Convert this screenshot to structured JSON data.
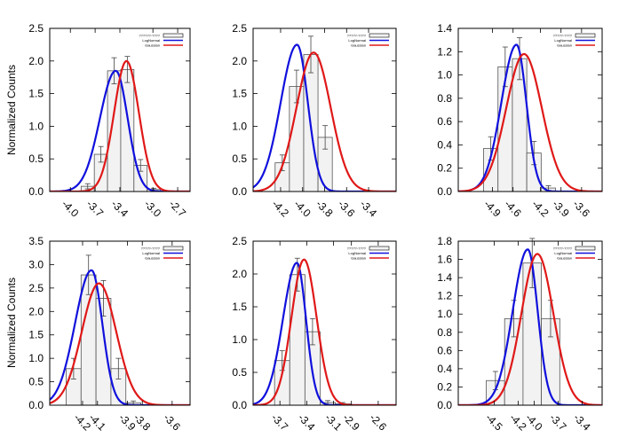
{
  "figure": {
    "ylabel_top": "Normalized Counts",
    "ylabel_bottom": "Normalized Counts"
  },
  "colors": {
    "bar_fill": "#f2f2f2",
    "bar_edge": "#555555",
    "lognormal": "#1010dd",
    "gaussian": "#e01818"
  },
  "chart_data": [
    {
      "type": "bar",
      "title": "",
      "xlabel": "",
      "ylabel": "Normalized Counts",
      "legend": {
        "label_hist": "??????-????",
        "label_lognormal": "LogNormal",
        "label_gaussian": "Gaussian",
        "position": "top-right"
      },
      "xlim": [
        -4.25,
        -2.55
      ],
      "ylim": [
        0,
        2.5
      ],
      "yticks": [
        0.0,
        0.5,
        1.0,
        1.5,
        2.0,
        2.5
      ],
      "ytick_labels": [
        "0.0",
        "0.5",
        "1.0",
        "1.5",
        "2.0",
        "2.5"
      ],
      "xticks": [
        -4.0,
        -3.7,
        -3.4,
        -3.0,
        -2.7
      ],
      "xtick_labels": [
        "-4.0",
        "-3.7",
        "-3.4",
        "-3.0",
        "-2.7"
      ],
      "bars": [
        {
          "x": -3.87,
          "width": 0.16,
          "value": 0.08,
          "err": 0.04
        },
        {
          "x": -3.71,
          "width": 0.16,
          "value": 0.57,
          "err": 0.12
        },
        {
          "x": -3.55,
          "width": 0.16,
          "value": 1.85,
          "err": 0.2
        },
        {
          "x": -3.39,
          "width": 0.16,
          "value": 1.87,
          "err": 0.2
        },
        {
          "x": -3.23,
          "width": 0.16,
          "value": 0.4,
          "err": 0.09
        },
        {
          "x": -3.07,
          "width": 0.16,
          "value": 0.03,
          "err": 0.02
        }
      ],
      "series": [
        {
          "name": "LogNormal",
          "model": "lognormal",
          "peak": 1.85,
          "mode": -3.45,
          "sigma": 0.16,
          "skew": 0.2
        },
        {
          "name": "Gaussian",
          "model": "gaussian",
          "peak": 2.0,
          "mu": -3.32,
          "sigma": 0.15
        }
      ]
    },
    {
      "type": "bar",
      "title": "",
      "xlabel": "",
      "ylabel": "",
      "legend": {
        "label_hist": "?????-????",
        "label_lognormal": "LogNormal",
        "label_gaussian": "Gaussian",
        "position": "top-right"
      },
      "xlim": [
        -4.45,
        -3.15
      ],
      "ylim": [
        0,
        2.5
      ],
      "yticks": [
        0.0,
        0.5,
        1.0,
        1.5,
        2.0,
        2.5
      ],
      "ytick_labels": [
        "0.0",
        "0.5",
        "1.0",
        "1.5",
        "2.0",
        "2.5"
      ],
      "xticks": [
        -4.2,
        -4.0,
        -3.8,
        -3.6,
        -3.4
      ],
      "xtick_labels": [
        "-4.2",
        "-4.0",
        "-3.8",
        "-3.6",
        "-3.4"
      ],
      "bars": [
        {
          "x": -4.25,
          "width": 0.13,
          "value": 0.44,
          "err": 0.12
        },
        {
          "x": -4.12,
          "width": 0.13,
          "value": 1.61,
          "err": 0.25
        },
        {
          "x": -3.99,
          "width": 0.13,
          "value": 2.1,
          "err": 0.28
        },
        {
          "x": -3.86,
          "width": 0.13,
          "value": 0.83,
          "err": 0.18
        }
      ],
      "series": [
        {
          "name": "LogNormal",
          "model": "lognormal",
          "peak": 2.25,
          "mode": -4.05,
          "sigma": 0.115,
          "skew": 0.3
        },
        {
          "name": "Gaussian",
          "model": "gaussian",
          "peak": 2.13,
          "mu": -3.9,
          "sigma": 0.155
        }
      ]
    },
    {
      "type": "bar",
      "title": "",
      "xlabel": "",
      "ylabel": "",
      "legend": {
        "label_hist": "?????-????",
        "label_lognormal": "LogNormal",
        "label_gaussian": "Gaussian",
        "position": "top-right"
      },
      "xlim": [
        -5.4,
        -3.3
      ],
      "ylim": [
        0,
        1.4
      ],
      "yticks": [
        0.0,
        0.2,
        0.4,
        0.6,
        0.8,
        1.0,
        1.2,
        1.4
      ],
      "ytick_labels": [
        "0.0",
        "0.2",
        "0.4",
        "0.6",
        "0.8",
        "1.0",
        "1.2",
        "1.4"
      ],
      "xticks": [
        -4.9,
        -4.6,
        -4.2,
        -3.9,
        -3.6
      ],
      "xtick_labels": [
        "-4.9",
        "-4.6",
        "-4.2",
        "-3.9",
        "-3.6"
      ],
      "bars": [
        {
          "x": -5.03,
          "width": 0.21,
          "value": 0.37,
          "err": 0.1
        },
        {
          "x": -4.82,
          "width": 0.21,
          "value": 1.07,
          "err": 0.17
        },
        {
          "x": -4.61,
          "width": 0.21,
          "value": 1.14,
          "err": 0.18
        },
        {
          "x": -4.4,
          "width": 0.21,
          "value": 0.33,
          "err": 0.1
        },
        {
          "x": -4.19,
          "width": 0.21,
          "value": 0.03,
          "err": 0.02
        }
      ],
      "series": [
        {
          "name": "LogNormal",
          "model": "lognormal",
          "peak": 1.26,
          "mode": -4.55,
          "sigma": 0.17,
          "skew": 0.3
        },
        {
          "name": "Gaussian",
          "model": "gaussian",
          "peak": 1.18,
          "mu": -4.44,
          "sigma": 0.26
        }
      ]
    },
    {
      "type": "bar",
      "title": "",
      "xlabel": "",
      "ylabel": "Normalized Counts",
      "legend": {
        "label_hist": "?????-????",
        "label_lognormal": "LogNormal",
        "label_gaussian": "Gaussian",
        "position": "top-right"
      },
      "xlim": [
        -4.42,
        -3.48
      ],
      "ylim": [
        0,
        3.5
      ],
      "yticks": [
        0.0,
        0.5,
        1.0,
        1.5,
        2.0,
        2.5,
        3.0,
        3.5
      ],
      "ytick_labels": [
        "0.0",
        "0.5",
        "1.0",
        "1.5",
        "2.0",
        "2.5",
        "3.0",
        "3.5"
      ],
      "xticks": [
        -4.2,
        -4.1,
        -3.9,
        -3.8,
        -3.6
      ],
      "xtick_labels": [
        "-4.2",
        "-4.1",
        "-3.9",
        "-3.8",
        "-3.6"
      ],
      "bars": [
        {
          "x": -4.31,
          "width": 0.1,
          "value": 0.78,
          "err": 0.22
        },
        {
          "x": -4.21,
          "width": 0.1,
          "value": 2.78,
          "err": 0.42
        },
        {
          "x": -4.11,
          "width": 0.1,
          "value": 2.28,
          "err": 0.38
        },
        {
          "x": -4.01,
          "width": 0.1,
          "value": 0.78,
          "err": 0.22
        },
        {
          "x": -3.91,
          "width": 0.1,
          "value": 0.05,
          "err": 0.04
        }
      ],
      "series": [
        {
          "name": "LogNormal",
          "model": "lognormal",
          "peak": 2.88,
          "mode": -4.14,
          "sigma": 0.085,
          "skew": 0.3
        },
        {
          "name": "Gaussian",
          "model": "gaussian",
          "peak": 2.6,
          "mu": -4.09,
          "sigma": 0.115
        }
      ]
    },
    {
      "type": "bar",
      "title": "",
      "xlabel": "",
      "ylabel": "",
      "legend": {
        "label_hist": "?????-????",
        "label_lognormal": "LogNormal",
        "label_gaussian": "Gaussian",
        "position": "top-right"
      },
      "xlim": [
        -4.0,
        -2.4
      ],
      "ylim": [
        0,
        2.5
      ],
      "yticks": [
        0.0,
        0.5,
        1.0,
        1.5,
        2.0,
        2.5
      ],
      "ytick_labels": [
        "0.0",
        "0.5",
        "1.0",
        "1.5",
        "2.0",
        "2.5"
      ],
      "xticks": [
        -3.7,
        -3.4,
        -3.1,
        -2.9,
        -2.6
      ],
      "xtick_labels": [
        "-3.7",
        "-3.4",
        "-3.1",
        "-2.9",
        "-2.6"
      ],
      "bars": [
        {
          "x": -3.76,
          "width": 0.17,
          "value": 0.68,
          "err": 0.15
        },
        {
          "x": -3.59,
          "width": 0.17,
          "value": 1.99,
          "err": 0.25
        },
        {
          "x": -3.42,
          "width": 0.17,
          "value": 1.12,
          "err": 0.2
        },
        {
          "x": -3.25,
          "width": 0.17,
          "value": 0.04,
          "err": 0.03
        },
        {
          "x": -3.08,
          "width": 0.17,
          "value": 0.02,
          "err": 0.02
        }
      ],
      "series": [
        {
          "name": "LogNormal",
          "model": "lognormal",
          "peak": 2.17,
          "mode": -3.51,
          "sigma": 0.12,
          "skew": 0.3
        },
        {
          "name": "Gaussian",
          "model": "gaussian",
          "peak": 2.22,
          "mu": -3.43,
          "sigma": 0.14
        }
      ]
    },
    {
      "type": "bar",
      "title": "",
      "xlabel": "",
      "ylabel": "",
      "legend": {
        "label_hist": "?????-????",
        "label_lognormal": "LogNormal",
        "label_gaussian": "Gaussian",
        "position": "top-right"
      },
      "xlim": [
        -4.95,
        -3.15
      ],
      "ylim": [
        0,
        1.8
      ],
      "yticks": [
        0.0,
        0.2,
        0.4,
        0.6,
        0.8,
        1.0,
        1.2,
        1.4,
        1.6,
        1.8
      ],
      "ytick_labels": [
        "0.0",
        "0.2",
        "0.4",
        "0.6",
        "0.8",
        "1.0",
        "1.2",
        "1.4",
        "1.6",
        "1.8"
      ],
      "xticks": [
        -4.5,
        -4.2,
        -4.0,
        -3.7,
        -3.4
      ],
      "xtick_labels": [
        "-4.5",
        "-4.2",
        "-4.0",
        "-3.7",
        "-3.4"
      ],
      "bars": [
        {
          "x": -4.6,
          "width": 0.23,
          "value": 0.27,
          "err": 0.1
        },
        {
          "x": -4.37,
          "width": 0.23,
          "value": 0.95,
          "err": 0.2
        },
        {
          "x": -4.14,
          "width": 0.23,
          "value": 1.56,
          "err": 0.27
        },
        {
          "x": -3.91,
          "width": 0.23,
          "value": 0.95,
          "err": 0.2
        }
      ],
      "series": [
        {
          "name": "LogNormal",
          "model": "lognormal",
          "peak": 1.71,
          "mode": -4.08,
          "sigma": 0.145,
          "skew": 0.3
        },
        {
          "name": "Gaussian",
          "model": "gaussian",
          "peak": 1.66,
          "mu": -3.96,
          "sigma": 0.2
        }
      ]
    }
  ]
}
